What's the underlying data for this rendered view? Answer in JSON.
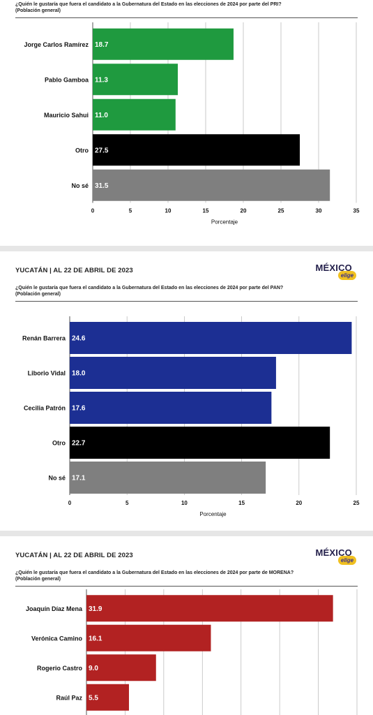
{
  "panels": [
    {
      "header": null,
      "question": "¿Quién le gustaría que fuera el candidato a la Gubernatura del Estado en las elecciones de 2024 por parte del PRI?",
      "population": "(Población general)"
    },
    {
      "header": "YUCATÁN | AL 22 DE ABRIL DE 2023",
      "logo": {
        "main": "MÉXICO",
        "sub": "elige"
      },
      "question": "¿Quién le gustaría que fuera el candidato a la Gubernatura del Estado en las elecciones de 2024 por parte del PAN?",
      "population": "(Población general)"
    },
    {
      "header": "YUCATÁN | AL 22 DE ABRIL DE 2023",
      "logo": {
        "main": "MÉXICO",
        "sub": "elige"
      },
      "question": "¿Quién le gustaría que fuera el candidato a la Gubernatura del Estado en las elecciones de 2024 por parte de MORENA?",
      "population": "(Población general)"
    }
  ],
  "chart_data": [
    {
      "type": "bar",
      "orientation": "horizontal",
      "categories": [
        "Jorge Carlos Ramírez",
        "Pablo Gamboa",
        "Mauricio Sahui",
        "Otro",
        "No sé"
      ],
      "values": [
        18.7,
        11.3,
        11.0,
        27.5,
        31.5
      ],
      "value_labels": [
        "18.7",
        "11.3",
        "11.0",
        "27.5",
        "31.5"
      ],
      "colors": [
        "#1f9a3f",
        "#1f9a3f",
        "#1f9a3f",
        "#000000",
        "#7f7f7f"
      ],
      "xlim": [
        0,
        35
      ],
      "xticks": [
        0,
        5,
        10,
        15,
        20,
        25,
        30,
        35
      ],
      "xlabel": "Porcentaje",
      "grid": true
    },
    {
      "type": "bar",
      "orientation": "horizontal",
      "categories": [
        "Renán Barrera",
        "Liborio Vidal",
        "Cecilia Patrón",
        "Otro",
        "No sé"
      ],
      "values": [
        24.6,
        18.0,
        17.6,
        22.7,
        17.1
      ],
      "value_labels": [
        "24.6",
        "18.0",
        "17.6",
        "22.7",
        "17.1"
      ],
      "colors": [
        "#1c2f93",
        "#1c2f93",
        "#1c2f93",
        "#000000",
        "#7f7f7f"
      ],
      "xlim": [
        0,
        25
      ],
      "xticks": [
        0,
        5,
        10,
        15,
        20,
        25
      ],
      "xlabel": "Porcentaje",
      "grid": true
    },
    {
      "type": "bar",
      "orientation": "horizontal",
      "categories": [
        "Joaquín Díaz Mena",
        "Verónica Camino",
        "Rogerio Castro",
        "Raúl Paz"
      ],
      "values": [
        31.9,
        16.1,
        9.0,
        5.5
      ],
      "value_labels": [
        "31.9",
        "16.1",
        "9.0",
        "5.5"
      ],
      "colors": [
        "#b22222",
        "#b22222",
        "#b22222",
        "#b22222"
      ],
      "xlim": [
        0,
        35
      ],
      "grid": true
    }
  ]
}
